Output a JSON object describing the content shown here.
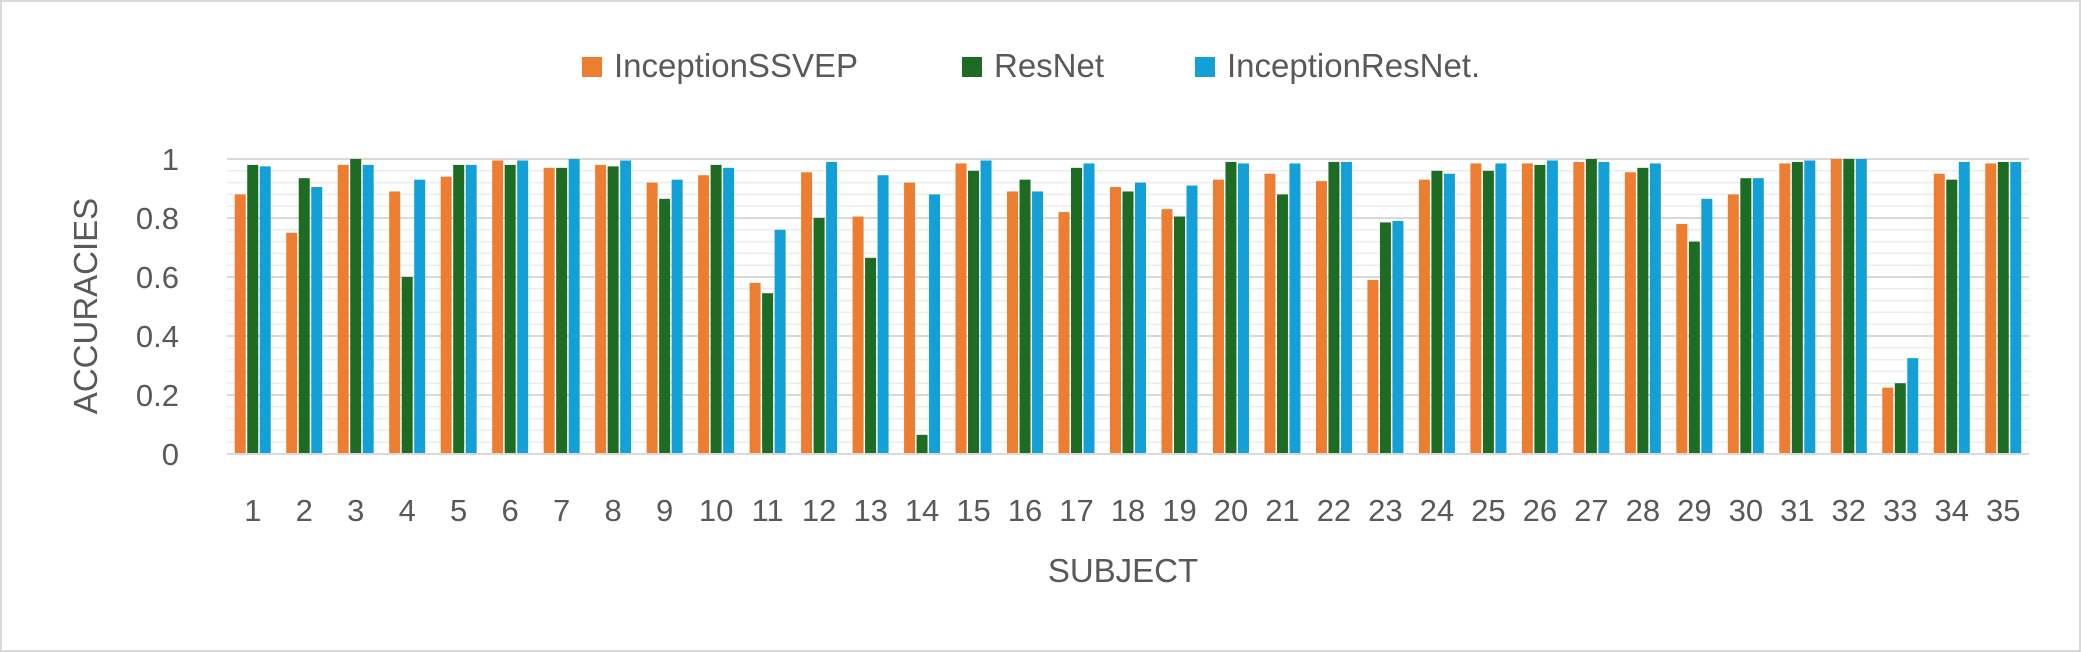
{
  "chart_data": {
    "type": "bar",
    "title": "",
    "xlabel": "SUBJECT",
    "ylabel": "ACCURACIES",
    "ylim": [
      0,
      1
    ],
    "yticks": [
      "0",
      "0.2",
      "0.4",
      "0.6",
      "0.8",
      "1"
    ],
    "grid": true,
    "legend_position": "top",
    "categories": [
      "1",
      "2",
      "3",
      "4",
      "5",
      "6",
      "7",
      "8",
      "9",
      "10",
      "11",
      "12",
      "13",
      "14",
      "15",
      "16",
      "17",
      "18",
      "19",
      "20",
      "21",
      "22",
      "23",
      "24",
      "25",
      "26",
      "27",
      "28",
      "29",
      "30",
      "31",
      "32",
      "33",
      "34",
      "35"
    ],
    "series": [
      {
        "name": "InceptionSSVEP",
        "color": "#ed7d31",
        "values": [
          0.88,
          0.75,
          0.98,
          0.89,
          0.94,
          0.995,
          0.97,
          0.98,
          0.92,
          0.945,
          0.58,
          0.955,
          0.805,
          0.92,
          0.985,
          0.89,
          0.82,
          0.905,
          0.83,
          0.93,
          0.95,
          0.925,
          0.59,
          0.93,
          0.985,
          0.985,
          0.99,
          0.955,
          0.78,
          0.88,
          0.985,
          1.0,
          0.225,
          0.95,
          0.985
        ]
      },
      {
        "name": "ResNet",
        "color": "#1e6b24",
        "values": [
          0.98,
          0.935,
          1.0,
          0.6,
          0.98,
          0.98,
          0.97,
          0.975,
          0.865,
          0.98,
          0.545,
          0.8,
          0.665,
          0.065,
          0.96,
          0.93,
          0.97,
          0.89,
          0.805,
          0.99,
          0.88,
          0.99,
          0.785,
          0.96,
          0.96,
          0.98,
          1.0,
          0.97,
          0.72,
          0.935,
          0.99,
          1.0,
          0.24,
          0.93,
          0.99
        ]
      },
      {
        "name": "InceptionResNet.",
        "color": "#12a0d7",
        "values": [
          0.975,
          0.905,
          0.98,
          0.93,
          0.98,
          0.995,
          1.0,
          0.995,
          0.93,
          0.97,
          0.76,
          0.99,
          0.945,
          0.88,
          0.995,
          0.89,
          0.985,
          0.92,
          0.91,
          0.985,
          0.985,
          0.99,
          0.79,
          0.95,
          0.985,
          0.995,
          0.99,
          0.985,
          0.865,
          0.935,
          0.995,
          1.0,
          0.325,
          0.99,
          0.99
        ]
      }
    ]
  }
}
